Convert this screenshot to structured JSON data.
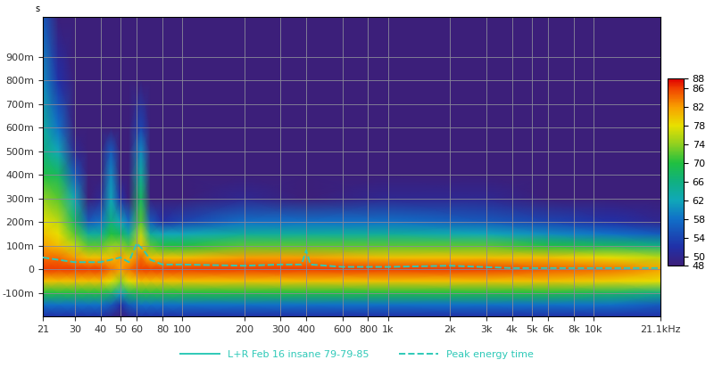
{
  "chart_data": {
    "type": "spectrogram",
    "ylabel": "s",
    "log": "x",
    "grid": true,
    "xlim": [
      21,
      21100
    ],
    "xticks": [
      21,
      30,
      40,
      50,
      60,
      80,
      100,
      200,
      300,
      400,
      600,
      800,
      {
        "value": 1000,
        "label": "1k"
      },
      {
        "value": 2000,
        "label": "2k"
      },
      {
        "value": 3000,
        "label": "3k"
      },
      {
        "value": 4000,
        "label": "4k"
      },
      {
        "value": 5000,
        "label": "5k"
      },
      {
        "value": 6000,
        "label": "6k"
      },
      {
        "value": 8000,
        "label": "8k"
      },
      {
        "value": 10000,
        "label": "10k"
      },
      {
        "value": 21100,
        "label": "21.1kHz"
      }
    ],
    "ylim": [
      -0.2,
      1.07
    ],
    "yticks": [
      {
        "value": -0.1,
        "label": "-100m"
      },
      0,
      {
        "value": 0.1,
        "label": "100m"
      },
      {
        "value": 0.2,
        "label": "200m"
      },
      {
        "value": 0.3,
        "label": "300m"
      },
      {
        "value": 0.4,
        "label": "400m"
      },
      {
        "value": 0.5,
        "label": "500m"
      },
      {
        "value": 0.6,
        "label": "600m"
      },
      {
        "value": 0.7,
        "label": "700m"
      },
      {
        "value": 0.8,
        "label": "800m"
      },
      {
        "value": 0.9,
        "label": "900m"
      }
    ],
    "frequencies": [
      21,
      25,
      30,
      35,
      40,
      45,
      50,
      55,
      63,
      70,
      80,
      100,
      200,
      400,
      1000,
      3000,
      6000,
      12000,
      21100
    ],
    "times": [
      -0.2,
      -0.15,
      -0.1,
      -0.05,
      0,
      0.05,
      0.1,
      0.15,
      0.2,
      0.3,
      0.4,
      0.5,
      0.6,
      0.8,
      1.07
    ],
    "cells": [
      [
        52,
        52,
        52,
        52,
        52,
        50,
        48,
        50,
        52,
        52,
        52,
        52,
        52,
        52,
        52,
        52,
        52,
        52,
        52
      ],
      [
        58,
        58,
        58,
        58,
        58,
        56,
        52,
        56,
        58,
        58,
        58,
        58,
        58,
        58,
        58,
        58,
        58,
        58,
        56
      ],
      [
        70,
        70,
        70,
        70,
        70,
        68,
        62,
        68,
        70,
        70,
        70,
        70,
        70,
        70,
        70,
        70,
        70,
        68,
        66
      ],
      [
        80,
        80,
        80,
        80,
        80,
        78,
        74,
        78,
        80,
        80,
        80,
        80,
        80,
        80,
        80,
        80,
        80,
        79,
        78
      ],
      [
        86,
        86,
        86,
        86,
        86,
        84,
        82,
        84,
        86,
        86,
        86,
        86,
        86,
        86,
        86,
        86,
        85,
        84,
        82
      ],
      [
        84,
        84,
        82,
        80,
        80,
        80,
        82,
        80,
        84,
        80,
        80,
        80,
        82,
        82,
        80,
        80,
        80,
        78,
        76
      ],
      [
        82,
        80,
        76,
        72,
        72,
        74,
        74,
        72,
        80,
        72,
        70,
        70,
        72,
        72,
        72,
        72,
        70,
        68,
        66
      ],
      [
        80,
        78,
        72,
        64,
        64,
        70,
        68,
        64,
        76,
        64,
        62,
        62,
        64,
        64,
        64,
        62,
        60,
        58,
        56
      ],
      [
        78,
        76,
        68,
        56,
        58,
        66,
        62,
        58,
        72,
        56,
        52,
        54,
        58,
        58,
        58,
        56,
        54,
        52,
        50
      ],
      [
        74,
        72,
        62,
        48,
        50,
        62,
        52,
        48,
        68,
        48,
        46,
        46,
        50,
        48,
        50,
        50,
        46,
        46,
        46
      ],
      [
        70,
        68,
        56,
        46,
        46,
        60,
        46,
        46,
        64,
        46,
        46,
        46,
        46,
        46,
        46,
        46,
        46,
        46,
        46
      ],
      [
        66,
        62,
        50,
        46,
        46,
        56,
        46,
        46,
        60,
        46,
        46,
        46,
        46,
        46,
        46,
        46,
        46,
        46,
        46
      ],
      [
        64,
        58,
        46,
        46,
        46,
        48,
        46,
        46,
        54,
        46,
        46,
        46,
        46,
        46,
        46,
        46,
        46,
        46,
        46
      ],
      [
        60,
        52,
        46,
        46,
        46,
        46,
        46,
        46,
        46,
        46,
        46,
        46,
        46,
        46,
        46,
        46,
        46,
        46,
        46
      ],
      [
        56,
        48,
        46,
        46,
        46,
        46,
        46,
        46,
        46,
        46,
        46,
        46,
        46,
        46,
        46,
        46,
        46,
        46,
        46
      ]
    ],
    "colorbar": {
      "range": [
        48,
        88
      ],
      "ticks": [
        48,
        50,
        54,
        58,
        62,
        66,
        70,
        74,
        78,
        82,
        86,
        88
      ]
    },
    "series": [
      {
        "name": "L+R Feb 16 insane 79-79-85",
        "color": "#2ec9b8",
        "line_style": "solid"
      },
      {
        "name": "Peak energy time",
        "color": "#2ec9b8",
        "line_style": "dashed",
        "x": [
          21,
          25,
          30,
          40,
          45,
          50,
          55,
          60,
          65,
          70,
          80,
          100,
          200,
          300,
          380,
          400,
          420,
          600,
          1000,
          2000,
          4000,
          10000,
          21100
        ],
        "values": [
          0.05,
          0.04,
          0.03,
          0.03,
          0.04,
          0.05,
          0.03,
          0.11,
          0.08,
          0.04,
          0.02,
          0.02,
          0.015,
          0.02,
          0.02,
          0.08,
          0.02,
          0.01,
          0.01,
          0.015,
          0.005,
          0.005,
          0.005
        ]
      }
    ],
    "legend": "lower center"
  }
}
